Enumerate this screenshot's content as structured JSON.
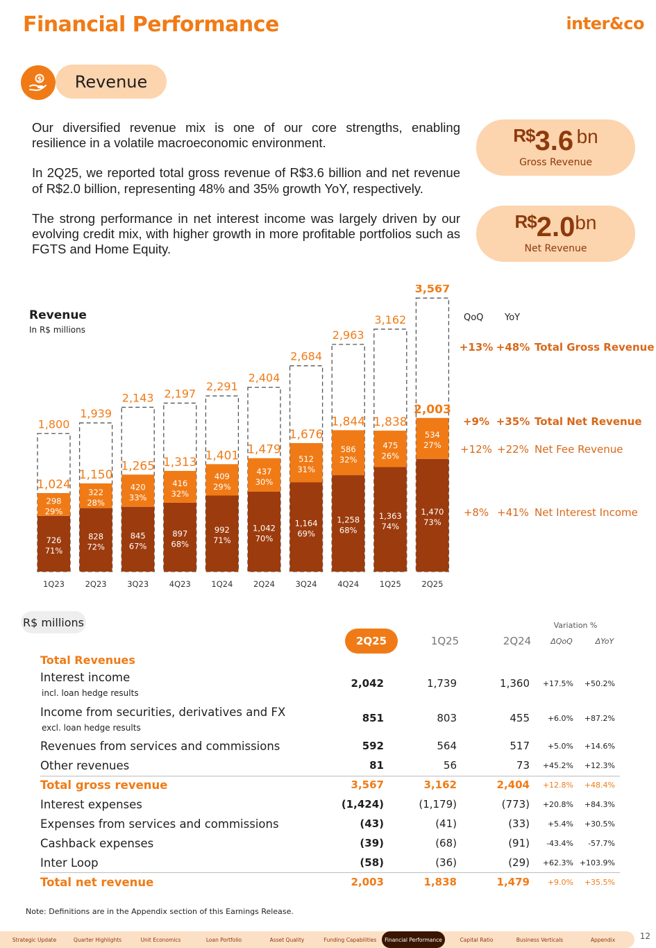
{
  "header": {
    "title": "Financial Performance",
    "brand": "inter&co"
  },
  "section": {
    "label": "Revenue",
    "icon": "hand-money-icon"
  },
  "intro": [
    "Our diversified revenue mix is one of our core strengths, enabling resilience in a volatile macroeconomic environment.",
    "In 2Q25, we reported total gross revenue of R$3.6 billion and net revenue of R$2.0 billion, representing 48% and 35% growth YoY, respectively.",
    "The strong performance in net interest income was largely driven by our evolving credit mix, with higher growth in more profitable portfolios such as FGTS and Home Equity."
  ],
  "kpis": [
    {
      "currency": "R$",
      "value": "3.6",
      "unit": "bn",
      "label": "Gross Revenue"
    },
    {
      "currency": "R$",
      "value": "2.0",
      "unit": "bn",
      "label": "Net Revenue"
    }
  ],
  "chart": {
    "title": "Revenue",
    "subtitle": "In R$ millions",
    "growth_headers": {
      "qoq": "QoQ",
      "yoy": "YoY"
    },
    "growth": [
      {
        "qoq": "+13%",
        "yoy": "+48%",
        "label": "Total Gross Revenue",
        "bold": true
      },
      {
        "qoq": "+9%",
        "yoy": "+35%",
        "label": "Total Net Revenue",
        "bold": true
      },
      {
        "qoq": "+12%",
        "yoy": "+22%",
        "label": "Net Fee Revenue",
        "bold": false
      },
      {
        "qoq": "+8%",
        "yoy": "+41%",
        "label": "Net Interest Income",
        "bold": false
      }
    ]
  },
  "chart_data": {
    "type": "bar",
    "categories": [
      "1Q23",
      "2Q23",
      "3Q23",
      "4Q23",
      "1Q24",
      "2Q24",
      "3Q24",
      "4Q24",
      "1Q25",
      "2Q25"
    ],
    "series": [
      {
        "name": "Net Interest Income",
        "values": [
          726,
          828,
          845,
          897,
          992,
          1042,
          1164,
          1258,
          1363,
          1470
        ],
        "pct": [
          "71%",
          "72%",
          "67%",
          "68%",
          "71%",
          "70%",
          "69%",
          "68%",
          "74%",
          "73%"
        ],
        "labels": [
          "726",
          "828",
          "845",
          "897",
          "992",
          "1,042",
          "1,164",
          "1,258",
          "1,363",
          "1,470"
        ]
      },
      {
        "name": "Net Fee Revenue",
        "values": [
          298,
          322,
          420,
          416,
          409,
          437,
          512,
          586,
          475,
          534
        ],
        "pct": [
          "29%",
          "28%",
          "33%",
          "32%",
          "29%",
          "30%",
          "31%",
          "32%",
          "26%",
          "27%"
        ],
        "labels": [
          "298",
          "322",
          "420",
          "416",
          "409",
          "437",
          "512",
          "586",
          "475",
          "534"
        ]
      },
      {
        "name": "Total Net Revenue",
        "values": [
          1024,
          1150,
          1265,
          1313,
          1401,
          1479,
          1676,
          1844,
          1838,
          2003
        ],
        "labels": [
          "1,024",
          "1,150",
          "1,265",
          "1,313",
          "1,401",
          "1,479",
          "1,676",
          "1,844",
          "1,838",
          "2,003"
        ]
      },
      {
        "name": "Total Gross Revenue",
        "values": [
          1800,
          1939,
          2143,
          2197,
          2291,
          2404,
          2684,
          2963,
          3162,
          3567
        ],
        "labels": [
          "1,800",
          "1,939",
          "2,143",
          "2,197",
          "2,291",
          "2,404",
          "2,684",
          "2,963",
          "3,162",
          "3,567"
        ]
      }
    ],
    "colors": {
      "interest": "#9c3b0d",
      "fee": "#f07b16",
      "label": "#f07b16",
      "dash": "#555555"
    },
    "ylim": [
      0,
      3700
    ]
  },
  "table": {
    "unit_label": "R$ millions",
    "variation_label": "Variation %",
    "columns": [
      "2Q25",
      "1Q25",
      "2Q24",
      "ΔQoQ",
      "ΔYoY"
    ],
    "section_title": "Total Revenues",
    "rows": [
      {
        "label": "Interest income",
        "sub": "incl. loan hedge results",
        "v": [
          "2,042",
          "1,739",
          "1,360"
        ],
        "p": [
          "+17.5%",
          "+50.2%"
        ]
      },
      {
        "label": "Income from securities, derivatives and FX",
        "sub": "excl. loan hedge results",
        "v": [
          "851",
          "803",
          "455"
        ],
        "p": [
          "+6.0%",
          "+87.2%"
        ]
      },
      {
        "label": "Revenues from services and commissions",
        "sub": "",
        "v": [
          "592",
          "564",
          "517"
        ],
        "p": [
          "+5.0%",
          "+14.6%"
        ]
      },
      {
        "label": "Other revenues",
        "sub": "",
        "v": [
          "81",
          "56",
          "73"
        ],
        "p": [
          "+45.2%",
          "+12.3%"
        ]
      },
      {
        "label": "Total gross revenue",
        "sub": "",
        "v": [
          "3,567",
          "3,162",
          "2,404"
        ],
        "p": [
          "+12.8%",
          "+48.4%"
        ]
      },
      {
        "label": "Interest expenses",
        "sub": "",
        "v": [
          "(1,424)",
          "(1,179)",
          "(773)"
        ],
        "p": [
          "+20.8%",
          "+84.3%"
        ]
      },
      {
        "label": "Expenses from services and commissions",
        "sub": "",
        "v": [
          "(43)",
          "(41)",
          "(33)"
        ],
        "p": [
          "+5.4%",
          "+30.5%"
        ]
      },
      {
        "label": "Cashback expenses",
        "sub": "",
        "v": [
          "(39)",
          "(68)",
          "(91)"
        ],
        "p": [
          "-43.4%",
          "-57.7%"
        ]
      },
      {
        "label": "Inter Loop",
        "sub": "",
        "v": [
          "(58)",
          "(36)",
          "(29)"
        ],
        "p": [
          "+62.3%",
          "+103.9%"
        ]
      },
      {
        "label": "Total net revenue",
        "sub": "",
        "v": [
          "2,003",
          "1,838",
          "1,479"
        ],
        "p": [
          "+9.0%",
          "+35.5%"
        ]
      }
    ]
  },
  "note": "Note: Definitions are in the Appendix section of this Earnings Release.",
  "footer": {
    "nav": [
      "Strategic Update",
      "Quarter Highlights",
      "Unit Economics",
      "Loan Portfolio",
      "Asset Quality",
      "Funding Capabilities",
      "Financial Performance",
      "Capital Ratio",
      "Business Verticals",
      "Appendix"
    ],
    "active": "Financial Performance",
    "page": "12"
  }
}
